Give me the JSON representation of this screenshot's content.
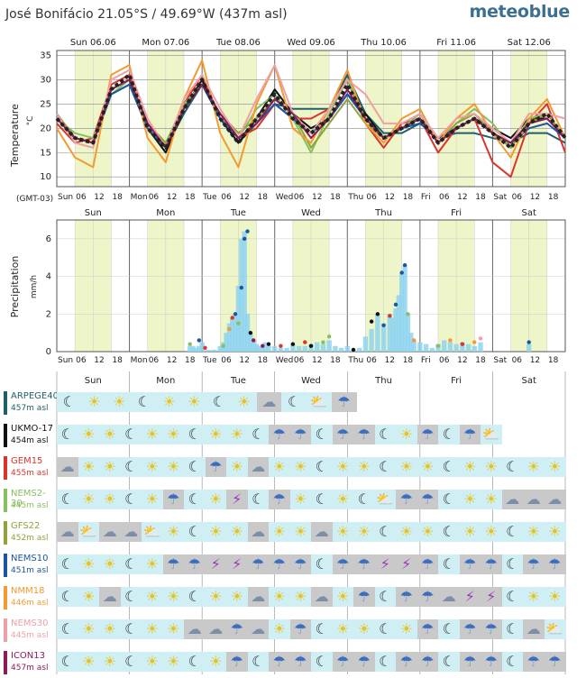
{
  "header": {
    "location": "José Bonifácio  21.05°S / 49.69°W (437m asl)",
    "brand": "meteoblue"
  },
  "chart_data": [
    {
      "type": "line",
      "ylabel": "Temperature",
      "yunit": "°C",
      "ylim": [
        8,
        36
      ],
      "yticks": [
        10,
        15,
        20,
        25,
        30,
        35
      ],
      "grid": true,
      "timezone_label": "(GMT-03)",
      "day_labels_top": [
        "Sun 06.06",
        "Mon 07.06",
        "Tue 08.06",
        "Wed 09.06",
        "Thu 10.06",
        "Fri 11.06",
        "Sat 12.06"
      ],
      "hour_ticks": [
        "Sun",
        "06",
        "12",
        "18",
        "Mon",
        "06",
        "12",
        "18",
        "Tue",
        "06",
        "12",
        "18",
        "Wed",
        "06",
        "12",
        "18",
        "Thu",
        "06",
        "12",
        "18",
        "Fri",
        "06",
        "12",
        "18",
        "Sat",
        "06",
        "12",
        "18"
      ],
      "x_hours": [
        0,
        6,
        12,
        18,
        24,
        30,
        36,
        42,
        48,
        54,
        60,
        66,
        72,
        78,
        84,
        90,
        96,
        102,
        108,
        114,
        120,
        126,
        132,
        138,
        144,
        150,
        156,
        162,
        168
      ],
      "series": [
        {
          "model": "ARPEGE40",
          "color": "#1f5f6b",
          "values": [
            23,
            18,
            17,
            27,
            29,
            20,
            16,
            23,
            29,
            22,
            17,
            21,
            25,
            24,
            24,
            24,
            31,
            23,
            19,
            19,
            21,
            18,
            19,
            19,
            18,
            17,
            19,
            19,
            17
          ]
        },
        {
          "model": "UKMO-17",
          "color": "#111111",
          "values": [
            22,
            18,
            17,
            28,
            30,
            20,
            15,
            24,
            30,
            22,
            17,
            22,
            28,
            23,
            20,
            22,
            27,
            23,
            18,
            20,
            22,
            18,
            20,
            22,
            20,
            18,
            22,
            22,
            18
          ]
        },
        {
          "model": "GEM15",
          "color": "#d9352a",
          "values": [
            21,
            17,
            18,
            29,
            31,
            20,
            16,
            25,
            31,
            22,
            18,
            20,
            25,
            22,
            22,
            24,
            30,
            21,
            16,
            21,
            22,
            15,
            20,
            22,
            13,
            10,
            21,
            25,
            15
          ]
        },
        {
          "model": "NEMS2-30",
          "color": "#86c060",
          "values": [
            22,
            19,
            18,
            27,
            30,
            21,
            17,
            25,
            29,
            22,
            18,
            24,
            27,
            22,
            15,
            23,
            30,
            22,
            18,
            20,
            23,
            17,
            21,
            24,
            21,
            16,
            22,
            23,
            18
          ]
        },
        {
          "model": "GFS22",
          "color": "#8fa23c",
          "values": [
            23,
            18,
            17,
            28,
            30,
            21,
            17,
            24,
            29,
            23,
            19,
            22,
            26,
            23,
            16,
            21,
            26,
            21,
            18,
            20,
            22,
            17,
            21,
            23,
            19,
            16,
            21,
            23,
            18
          ]
        },
        {
          "model": "NEMS10",
          "color": "#1b56a3",
          "values": [
            22,
            18,
            17,
            27,
            29,
            20,
            16,
            24,
            29,
            22,
            18,
            21,
            25,
            22,
            19,
            22,
            27,
            22,
            18,
            20,
            21,
            18,
            20,
            22,
            19,
            17,
            20,
            21,
            18
          ]
        },
        {
          "model": "NMM18",
          "color": "#f39a30",
          "values": [
            20,
            14,
            12,
            31,
            33,
            18,
            13,
            26,
            34,
            19,
            12,
            25,
            33,
            20,
            17,
            24,
            32,
            21,
            17,
            22,
            24,
            17,
            22,
            25,
            19,
            14,
            22,
            26,
            18
          ]
        },
        {
          "model": "NEMS30",
          "color": "#eea0a6",
          "values": [
            23,
            17,
            16,
            30,
            32,
            22,
            16,
            26,
            31,
            24,
            18,
            26,
            33,
            23,
            19,
            24,
            30,
            27,
            21,
            21,
            23,
            18,
            22,
            23,
            20,
            17,
            23,
            23,
            22
          ]
        },
        {
          "model": "ICON13",
          "color": "#8e1a5a",
          "values": [
            22,
            18,
            17,
            28,
            30,
            21,
            16,
            24,
            29,
            23,
            18,
            21,
            26,
            23,
            18,
            22,
            28,
            22,
            18,
            20,
            22,
            17,
            20,
            22,
            19,
            17,
            21,
            22,
            18
          ]
        },
        {
          "model": "multimodel",
          "color": "#222222",
          "dashed": true,
          "values": [
            22,
            18,
            17,
            28,
            31,
            20,
            16,
            24,
            30,
            22,
            17,
            22,
            27,
            22,
            19,
            22,
            29,
            22,
            18,
            20,
            22,
            17,
            20,
            22,
            19,
            16,
            21,
            23,
            18
          ]
        }
      ]
    },
    {
      "type": "bar",
      "ylabel": "Precipitation",
      "yunit": "mm/h",
      "ylim": [
        0,
        7
      ],
      "yticks": [
        0,
        2,
        4,
        6
      ],
      "day_labels_top": [
        "Sun",
        "Mon",
        "Tue",
        "Wed",
        "Thu",
        "Fri",
        "Sat"
      ],
      "hour_ticks": [
        "Sun",
        "06",
        "12",
        "18",
        "Mon",
        "06",
        "12",
        "18",
        "Tue",
        "06",
        "12",
        "18",
        "Wed",
        "06",
        "12",
        "18",
        "Thu",
        "06",
        "12",
        "18",
        "Fri",
        "06",
        "12",
        "18",
        "Sat",
        "06",
        "12",
        "18"
      ],
      "bars_hour": [
        44,
        45,
        46,
        47,
        48,
        50,
        52,
        54,
        55,
        56,
        57,
        58,
        59,
        60,
        61,
        62,
        63,
        64,
        65,
        66,
        67,
        68,
        69,
        70,
        72,
        74,
        76,
        78,
        80,
        82,
        84,
        86,
        88,
        90,
        92,
        94,
        96,
        98,
        100,
        102,
        104,
        106,
        108,
        110,
        111,
        112,
        113,
        114,
        115,
        116,
        117,
        118,
        120,
        122,
        124,
        126,
        128,
        130,
        132,
        134,
        136,
        138,
        140,
        156
      ],
      "bars_value": [
        0.3,
        0.3,
        0.2,
        0.3,
        0.5,
        0.1,
        0.1,
        0.3,
        0.5,
        1.0,
        1.5,
        1.8,
        2.0,
        3.5,
        6.0,
        6.4,
        2.0,
        1.0,
        0.6,
        0.4,
        0.3,
        0.2,
        0.5,
        0.3,
        0.3,
        0.2,
        0.2,
        0.4,
        0.3,
        0.3,
        0.4,
        0.5,
        0.4,
        0.6,
        0.3,
        0.2,
        0.3,
        0.1,
        0.2,
        0.8,
        1.2,
        2.0,
        1.5,
        2.0,
        1.8,
        2.3,
        3.0,
        4.2,
        4.6,
        2.0,
        1.0,
        0.6,
        0.5,
        0.4,
        0.2,
        0.4,
        0.6,
        0.5,
        0.4,
        0.5,
        0.4,
        0.3,
        0.5,
        0.4
      ],
      "dots": [
        {
          "hour": 44,
          "value": 0.4,
          "color": "#86c060"
        },
        {
          "hour": 47,
          "value": 0.6,
          "color": "#1b56a3"
        },
        {
          "hour": 49,
          "value": 0.2,
          "color": "#d9352a"
        },
        {
          "hour": 55,
          "value": 0.3,
          "color": "#86c060"
        },
        {
          "hour": 57,
          "value": 1.2,
          "color": "#f39a30"
        },
        {
          "hour": 58,
          "value": 1.8,
          "color": "#d9352a"
        },
        {
          "hour": 59,
          "value": 2.0,
          "color": "#1b56a3"
        },
        {
          "hour": 60,
          "value": 1.5,
          "color": "#86c060"
        },
        {
          "hour": 61,
          "value": 3.4,
          "color": "#1b56a3"
        },
        {
          "hour": 62,
          "value": 6.0,
          "color": "#1b56a3"
        },
        {
          "hour": 63,
          "value": 6.4,
          "color": "#1b56a3"
        },
        {
          "hour": 64,
          "value": 1.0,
          "color": "#111111"
        },
        {
          "hour": 65,
          "value": 0.6,
          "color": "#8e1a5a"
        },
        {
          "hour": 68,
          "value": 0.3,
          "color": "#8e1a5a"
        },
        {
          "hour": 70,
          "value": 0.4,
          "color": "#111111"
        },
        {
          "hour": 74,
          "value": 0.3,
          "color": "#d9352a"
        },
        {
          "hour": 78,
          "value": 0.4,
          "color": "#111111"
        },
        {
          "hour": 82,
          "value": 0.5,
          "color": "#d9352a"
        },
        {
          "hour": 84,
          "value": 0.3,
          "color": "#111111"
        },
        {
          "hour": 88,
          "value": 0.5,
          "color": "#86c060"
        },
        {
          "hour": 90,
          "value": 0.8,
          "color": "#86c060"
        },
        {
          "hour": 98,
          "value": 0.1,
          "color": "#111111"
        },
        {
          "hour": 104,
          "value": 1.6,
          "color": "#111111"
        },
        {
          "hour": 106,
          "value": 2.0,
          "color": "#111111"
        },
        {
          "hour": 108,
          "value": 1.4,
          "color": "#1b56a3"
        },
        {
          "hour": 110,
          "value": 1.9,
          "color": "#d9352a"
        },
        {
          "hour": 112,
          "value": 2.5,
          "color": "#1b56a3"
        },
        {
          "hour": 114,
          "value": 4.2,
          "color": "#1b56a3"
        },
        {
          "hour": 115,
          "value": 4.6,
          "color": "#1b56a3"
        },
        {
          "hour": 116,
          "value": 2.0,
          "color": "#86c060"
        },
        {
          "hour": 118,
          "value": 0.6,
          "color": "#f39a30"
        },
        {
          "hour": 126,
          "value": 0.3,
          "color": "#86c060"
        },
        {
          "hour": 130,
          "value": 0.6,
          "color": "#f39a30"
        },
        {
          "hour": 134,
          "value": 0.4,
          "color": "#d9352a"
        },
        {
          "hour": 138,
          "value": 0.5,
          "color": "#f39a30"
        },
        {
          "hour": 140,
          "value": 0.7,
          "color": "#eea0a6"
        },
        {
          "hour": 156,
          "value": 0.5,
          "color": "#1b56a3"
        }
      ]
    }
  ],
  "weather_rows": {
    "day_labels": [
      "Sun",
      "Mon",
      "Tue",
      "Wed",
      "Thu",
      "Fri",
      "Sat"
    ],
    "models": [
      {
        "name": "ARPEGE40",
        "elev": "457m asl",
        "color": "#1f5f6b",
        "end_hour": 99,
        "icons": [
          "moon-cloud",
          "sun",
          "sun",
          "moon",
          "sun",
          "sun",
          "moon",
          "sun",
          "cloud",
          "moon-cloud",
          "sun-cloud",
          "rain"
        ]
      },
      {
        "name": "UKMO-17",
        "elev": "454m asl",
        "color": "#111111",
        "end_hour": 147,
        "icons": [
          "moon-cloud",
          "sun",
          "sun",
          "moon",
          "sun",
          "sun",
          "moon",
          "sun",
          "sun",
          "moon",
          "rain",
          "rain",
          "moon-cloud",
          "rain",
          "rain",
          "moon-cloud",
          "sun",
          "rain",
          "moon",
          "rain",
          "sun-cloud"
        ]
      },
      {
        "name": "GEM15",
        "elev": "455m asl",
        "color": "#d9352a",
        "end_hour": 168,
        "icons": [
          "cloud",
          "sun",
          "sun",
          "moon-cloud",
          "sun",
          "sun",
          "moon-cloud",
          "rain",
          "sun",
          "cloud",
          "sun",
          "sun",
          "moon-cloud",
          "sun",
          "sun",
          "moon-cloud",
          "sun",
          "sun",
          "moon-cloud",
          "sun",
          "sun",
          "moon",
          "sun",
          "sun"
        ]
      },
      {
        "name": "NEMS2-30",
        "elev": "445m asl",
        "color": "#86c060",
        "end_hour": 168,
        "icons": [
          "moon",
          "sun",
          "sun",
          "moon",
          "sun",
          "rain",
          "moon",
          "sun",
          "storm",
          "moon-cloud",
          "rain",
          "sun",
          "moon",
          "sun",
          "moon",
          "sun-cloud",
          "rain",
          "rain",
          "moon",
          "sun",
          "sun",
          "cloud",
          "cloud",
          "cloud"
        ]
      },
      {
        "name": "GFS22",
        "elev": "452m asl",
        "color": "#8fa23c",
        "end_hour": 168,
        "icons": [
          "cloud",
          "sun-cloud",
          "cloud",
          "cloud",
          "sun-cloud",
          "sun",
          "moon-cloud",
          "sun",
          "sun",
          "cloud",
          "sun",
          "sun",
          "cloud",
          "sun",
          "sun",
          "moon-cloud",
          "sun",
          "sun",
          "moon-cloud",
          "sun",
          "sun",
          "moon-cloud",
          "sun",
          "sun"
        ]
      },
      {
        "name": "NEMS10",
        "elev": "451m asl",
        "color": "#1b56a3",
        "end_hour": 168,
        "icons": [
          "moon",
          "sun",
          "sun",
          "moon",
          "sun",
          "rain",
          "rain",
          "storm",
          "storm",
          "rain",
          "rain",
          "rain",
          "moon",
          "rain",
          "rain",
          "storm",
          "storm",
          "rain",
          "moon-cloud",
          "rain",
          "rain",
          "moon",
          "rain",
          "rain"
        ]
      },
      {
        "name": "NMM18",
        "elev": "446m asl",
        "color": "#f39a30",
        "end_hour": 168,
        "icons": [
          "moon",
          "sun",
          "cloud",
          "moon",
          "sun",
          "sun",
          "moon",
          "sun",
          "sun",
          "cloud",
          "sun",
          "sun",
          "cloud",
          "sun",
          "rain",
          "moon",
          "rain",
          "rain",
          "cloud",
          "storm",
          "storm",
          "moon",
          "sun",
          "sun"
        ]
      },
      {
        "name": "NEMS30",
        "elev": "445m asl",
        "color": "#eea0a6",
        "end_hour": 168,
        "icons": [
          "moon",
          "sun",
          "sun",
          "moon",
          "sun",
          "sun",
          "cloud",
          "cloud",
          "rain",
          "cloud",
          "sun",
          "rain",
          "moon",
          "sun",
          "sun",
          "moon-cloud",
          "sun",
          "rain",
          "moon",
          "rain",
          "rain",
          "moon-cloud",
          "cloud",
          "sun-cloud"
        ]
      },
      {
        "name": "ICON13",
        "elev": "457m asl",
        "color": "#8e1a5a",
        "end_hour": 168,
        "icons": [
          "moon",
          "sun",
          "sun",
          "moon",
          "sun",
          "sun",
          "moon-cloud",
          "sun",
          "rain",
          "moon-cloud",
          "rain",
          "rain",
          "moon",
          "rain",
          "rain",
          "moon",
          "rain",
          "rain",
          "moon",
          "rain",
          "rain",
          "moon",
          "rain",
          "rain"
        ]
      }
    ]
  },
  "icon_glyphs": {
    "sun": "☀",
    "moon": "☾",
    "cloud": "☁",
    "moon-cloud": "☾",
    "sun-cloud": "⛅",
    "rain": "☂",
    "storm": "⚡"
  }
}
